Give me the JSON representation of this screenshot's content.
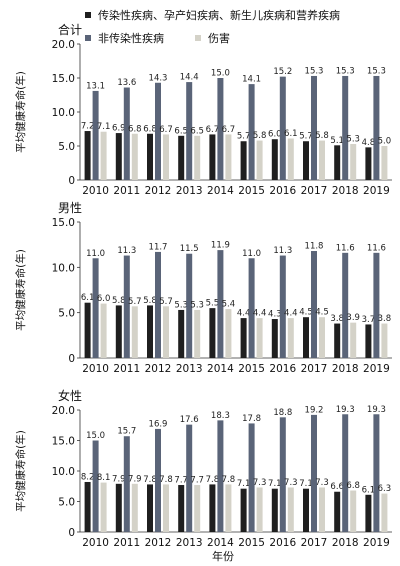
{
  "legend": {
    "items": [
      {
        "label": "传染性疾病、孕产妇疾病、新生儿疾病和营养疾病",
        "color": "#1f1f1f"
      },
      {
        "label": "非传染性疾病",
        "color": "#5a6478"
      },
      {
        "label": "伤害",
        "color": "#d4d2c8"
      }
    ]
  },
  "x_axis_title": "年份",
  "chart_data": [
    {
      "type": "bar",
      "title": "合计",
      "ylabel": "平均健康寿命(年)",
      "ylim": [
        0,
        20
      ],
      "yticks": [
        "0",
        "5.0",
        "10.0",
        "15.0",
        "20.0"
      ],
      "categories": [
        "2010",
        "2011",
        "2012",
        "2013",
        "2014",
        "2015",
        "2016",
        "2017",
        "2018",
        "2019"
      ],
      "series": [
        {
          "name": "传染性疾病、孕产妇疾病、新生儿疾病和营养疾病",
          "values": [
            7.2,
            6.9,
            6.8,
            6.5,
            6.7,
            5.7,
            6.0,
            5.7,
            5.1,
            4.8
          ],
          "labels": [
            "7.2",
            "6.9",
            "6.8",
            "6.5",
            "6.7",
            "5.7",
            "6.0",
            "5.7",
            "5.1",
            "4.8"
          ]
        },
        {
          "name": "非传染性疾病",
          "values": [
            13.1,
            13.6,
            14.3,
            14.4,
            15.0,
            14.1,
            15.2,
            15.3,
            15.3,
            15.3
          ],
          "labels": [
            "13.1",
            "13.6",
            "14.3",
            "14.4",
            "15.0",
            "14.1",
            "15.2",
            "15.3",
            "15.3",
            "15.3"
          ]
        },
        {
          "name": "伤害",
          "values": [
            7.1,
            6.8,
            6.7,
            6.5,
            6.7,
            5.8,
            6.1,
            5.8,
            5.3,
            5.0
          ],
          "labels": [
            "7.1",
            "6.8",
            "6.7",
            "6.5",
            "6.7",
            "5.8",
            "6.1",
            "5.8",
            "5.3",
            "5.0"
          ]
        }
      ]
    },
    {
      "type": "bar",
      "title": "男性",
      "ylabel": "平均健康寿命(年)",
      "ylim": [
        0,
        15
      ],
      "yticks": [
        "0",
        "5.0",
        "10.0",
        "15.0"
      ],
      "categories": [
        "2010",
        "2011",
        "2012",
        "2013",
        "2014",
        "2015",
        "2016",
        "2017",
        "2018",
        "2019"
      ],
      "series": [
        {
          "name": "传染性疾病、孕产妇疾病、新生儿疾病和营养疾病",
          "values": [
            6.1,
            5.8,
            5.8,
            5.3,
            5.5,
            4.4,
            4.3,
            4.5,
            3.8,
            3.7
          ],
          "labels": [
            "6.1",
            "5.8",
            "5.8",
            "5.3",
            "5.5",
            "4.4",
            "4.3",
            "4.5",
            "3.8",
            "3.7"
          ]
        },
        {
          "name": "非传染性疾病",
          "values": [
            11.0,
            11.3,
            11.7,
            11.5,
            11.9,
            11.0,
            11.3,
            11.8,
            11.6,
            11.6
          ],
          "labels": [
            "11.0",
            "11.3",
            "11.7",
            "11.5",
            "11.9",
            "11.0",
            "11.3",
            "11.8",
            "11.6",
            "11.6"
          ]
        },
        {
          "name": "伤害",
          "values": [
            6.0,
            5.7,
            5.7,
            5.3,
            5.4,
            4.4,
            4.4,
            4.5,
            3.9,
            3.8
          ],
          "labels": [
            "6.0",
            "5.7",
            "5.7",
            "5.3",
            "5.4",
            "4.4",
            "4.4",
            "4.5",
            "3.9",
            "3.8"
          ]
        }
      ]
    },
    {
      "type": "bar",
      "title": "女性",
      "ylabel": "平均健康寿命(年)",
      "ylim": [
        0,
        20
      ],
      "yticks": [
        "0",
        "5.0",
        "10.0",
        "15.0",
        "20.0"
      ],
      "categories": [
        "2010",
        "2011",
        "2012",
        "2013",
        "2014",
        "2015",
        "2016",
        "2017",
        "2018",
        "2019"
      ],
      "series": [
        {
          "name": "传染性疾病、孕产妇疾病、新生儿疾病和营养疾病",
          "values": [
            8.2,
            7.9,
            7.8,
            7.7,
            7.8,
            7.1,
            7.1,
            7.1,
            6.6,
            6.1
          ],
          "labels": [
            "8.2",
            "7.9",
            "7.8",
            "7.7",
            "7.8",
            "7.1",
            "7.1",
            "7.1",
            "6.6",
            "6.1"
          ]
        },
        {
          "name": "非传染性疾病",
          "values": [
            15.0,
            15.7,
            16.9,
            17.6,
            18.3,
            17.8,
            18.8,
            19.2,
            19.3,
            19.3
          ],
          "labels": [
            "15.0",
            "15.7",
            "16.9",
            "17.6",
            "18.3",
            "17.8",
            "18.8",
            "19.2",
            "19.3",
            "19.3"
          ]
        },
        {
          "name": "伤害",
          "values": [
            8.1,
            7.9,
            7.8,
            7.7,
            7.8,
            7.3,
            7.3,
            7.3,
            6.8,
            6.3
          ],
          "labels": [
            "8.1",
            "7.9",
            "7.8",
            "7.7",
            "7.8",
            "7.3",
            "7.3",
            "7.3",
            "6.8",
            "6.3"
          ]
        }
      ]
    }
  ]
}
